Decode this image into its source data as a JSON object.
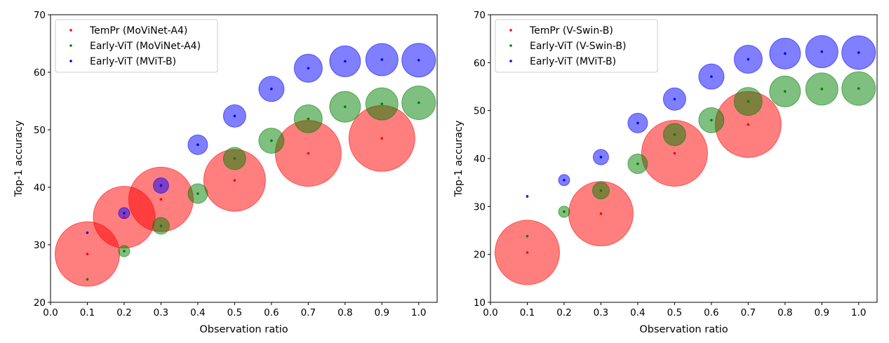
{
  "chart_data": [
    {
      "type": "scatter",
      "xlabel": "Observation ratio",
      "ylabel": "Top-1 accuracy",
      "xlim": [
        0.0,
        1.05
      ],
      "ylim": [
        20,
        70
      ],
      "xticks": [
        0.0,
        0.1,
        0.2,
        0.3,
        0.4,
        0.5,
        0.6,
        0.7,
        0.8,
        0.9,
        1.0
      ],
      "xtick_labels": [
        "0.0",
        "0.1",
        "0.2",
        "0.3",
        "0.4",
        "0.5",
        "0.6",
        "0.7",
        "0.8",
        "0.9",
        "1.0"
      ],
      "yticks": [
        20,
        30,
        40,
        50,
        60,
        70
      ],
      "ytick_labels": [
        "20",
        "30",
        "40",
        "50",
        "60",
        "70"
      ],
      "grid": false,
      "legend_position": "top-left",
      "series": [
        {
          "name": "TemPr (MoViNet-A4)",
          "color": "#ff0000",
          "x": [
            0.1,
            0.2,
            0.3,
            0.5,
            0.7,
            0.9
          ],
          "y": [
            28.4,
            34.8,
            37.9,
            41.2,
            45.9,
            48.5
          ],
          "bubble_size": [
            46.0,
            44.0,
            46.0,
            44.0,
            47.0,
            47.0
          ]
        },
        {
          "name": "Early-ViT (MoViNet-A4)",
          "color": "#008000",
          "x": [
            0.1,
            0.2,
            0.3,
            0.4,
            0.5,
            0.6,
            0.7,
            0.8,
            0.9,
            1.0
          ],
          "y": [
            24.0,
            28.9,
            33.3,
            38.9,
            45.0,
            48.1,
            51.9,
            54.0,
            54.5,
            54.7
          ],
          "bubble_size": [
            0.0,
            8.0,
            12.0,
            14.0,
            16.0,
            18.0,
            20.0,
            22.0,
            23.0,
            24.0
          ]
        },
        {
          "name": "Early-ViT (MViT-B)",
          "color": "#0000ff",
          "x": [
            0.1,
            0.2,
            0.3,
            0.4,
            0.5,
            0.6,
            0.7,
            0.8,
            0.9,
            1.0
          ],
          "y": [
            32.1,
            35.5,
            40.3,
            47.4,
            52.4,
            57.1,
            60.7,
            61.9,
            62.2,
            62.1
          ],
          "bubble_size": [
            0.0,
            8.0,
            11.0,
            14.0,
            16.0,
            18.0,
            20.0,
            22.0,
            23.0,
            24.0
          ]
        }
      ]
    },
    {
      "type": "scatter",
      "xlabel": "Observation ratio",
      "ylabel": "Top-1 accuracy",
      "xlim": [
        0.0,
        1.05
      ],
      "ylim": [
        10,
        70
      ],
      "xticks": [
        0.0,
        0.1,
        0.2,
        0.3,
        0.4,
        0.5,
        0.6,
        0.7,
        0.8,
        0.9,
        1.0
      ],
      "xtick_labels": [
        "0.0",
        "0.1",
        "0.2",
        "0.3",
        "0.4",
        "0.5",
        "0.6",
        "0.7",
        "0.8",
        "0.9",
        "1.0"
      ],
      "yticks": [
        10,
        20,
        30,
        40,
        50,
        60,
        70
      ],
      "ytick_labels": [
        "10",
        "20",
        "30",
        "40",
        "50",
        "60",
        "70"
      ],
      "grid": false,
      "legend_position": "top-left",
      "series": [
        {
          "name": "TemPr (V-Swin-B)",
          "color": "#ff0000",
          "x": [
            0.1,
            0.3,
            0.5,
            0.7
          ],
          "y": [
            20.4,
            28.5,
            41.1,
            47.1
          ],
          "bubble_size": [
            46.0,
            46.0,
            47.0,
            47.0
          ]
        },
        {
          "name": "Early-ViT (V-Swin-B)",
          "color": "#008000",
          "x": [
            0.1,
            0.2,
            0.3,
            0.4,
            0.5,
            0.6,
            0.7,
            0.8,
            0.9,
            1.0
          ],
          "y": [
            23.8,
            28.9,
            33.3,
            38.9,
            45.0,
            48.0,
            51.9,
            54.0,
            54.5,
            54.6
          ],
          "bubble_size": [
            0.0,
            8.0,
            12.0,
            14.0,
            16.0,
            18.0,
            20.0,
            22.0,
            23.0,
            24.0
          ]
        },
        {
          "name": "Early-ViT (MViT-B)",
          "color": "#0000ff",
          "x": [
            0.1,
            0.2,
            0.3,
            0.4,
            0.5,
            0.6,
            0.7,
            0.8,
            0.9,
            1.0
          ],
          "y": [
            32.1,
            35.5,
            40.3,
            47.4,
            52.4,
            57.1,
            60.7,
            61.9,
            62.3,
            62.1
          ],
          "bubble_size": [
            0.0,
            8.0,
            11.0,
            14.0,
            16.0,
            18.0,
            20.0,
            22.0,
            23.0,
            24.0
          ]
        }
      ]
    }
  ]
}
